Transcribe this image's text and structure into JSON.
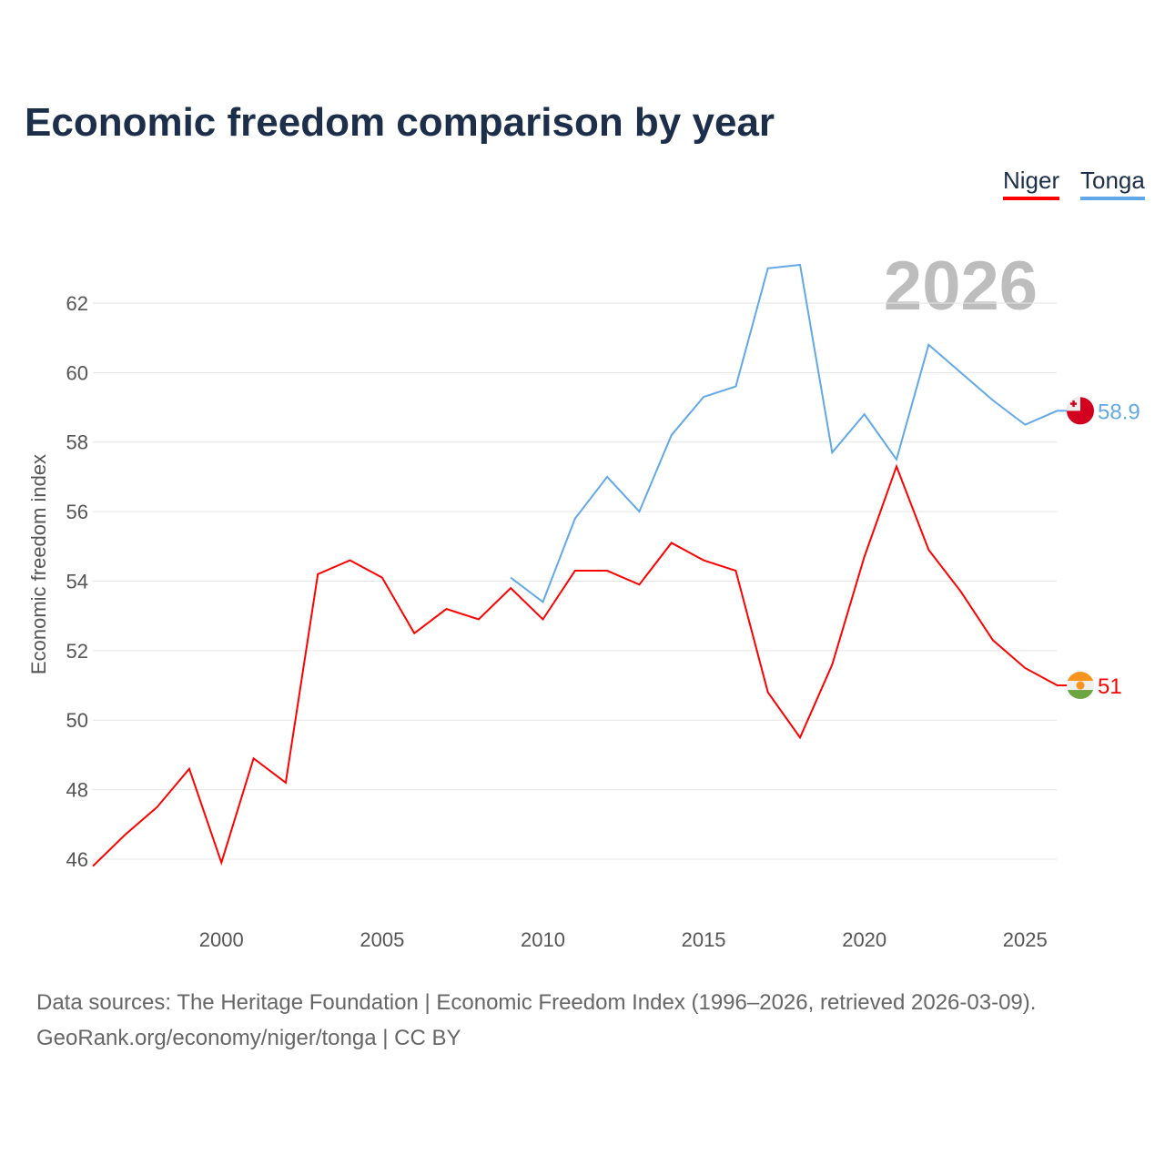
{
  "chart_data": {
    "type": "line",
    "title": "Economic freedom comparison by year",
    "xlabel": "",
    "ylabel": "Economic freedom index",
    "xlim": [
      1996,
      2026
    ],
    "ylim": [
      45,
      64
    ],
    "xticks": [
      2000,
      2005,
      2010,
      2015,
      2020,
      2025
    ],
    "yticks": [
      46,
      48,
      50,
      52,
      54,
      56,
      58,
      60,
      62
    ],
    "year_label": "2026",
    "legend": "top-right",
    "series": [
      {
        "name": "Niger",
        "color": "#ff0000",
        "end_label": "51",
        "x": [
          1996,
          1997,
          1998,
          1999,
          2000,
          2001,
          2002,
          2003,
          2004,
          2005,
          2006,
          2007,
          2008,
          2009,
          2010,
          2011,
          2012,
          2013,
          2014,
          2015,
          2016,
          2017,
          2018,
          2019,
          2020,
          2021,
          2022,
          2023,
          2024,
          2025,
          2026
        ],
        "values": [
          45.8,
          46.7,
          47.5,
          48.6,
          45.9,
          48.9,
          48.2,
          54.2,
          54.6,
          54.1,
          52.5,
          53.2,
          52.9,
          53.8,
          52.9,
          54.3,
          54.3,
          53.9,
          55.1,
          54.6,
          54.3,
          50.8,
          49.5,
          51.6,
          54.7,
          57.3,
          54.9,
          53.7,
          52.3,
          51.5,
          51.0
        ]
      },
      {
        "name": "Tonga",
        "color": "#62a8e8",
        "end_label": "58.9",
        "x": [
          2009,
          2010,
          2011,
          2012,
          2013,
          2014,
          2015,
          2016,
          2017,
          2018,
          2019,
          2020,
          2021,
          2022,
          2023,
          2024,
          2025,
          2026
        ],
        "values": [
          54.1,
          53.4,
          55.8,
          57.0,
          56.0,
          58.2,
          59.3,
          59.6,
          63.0,
          63.1,
          57.7,
          58.8,
          57.5,
          60.8,
          60.0,
          59.2,
          58.5,
          58.9
        ]
      }
    ]
  },
  "footer": {
    "line1": "Data sources: The Heritage Foundation | Economic Freedom Index (1996–2026, retrieved 2026-03-09).",
    "line2": "GeoRank.org/economy/niger/tonga | CC BY"
  }
}
